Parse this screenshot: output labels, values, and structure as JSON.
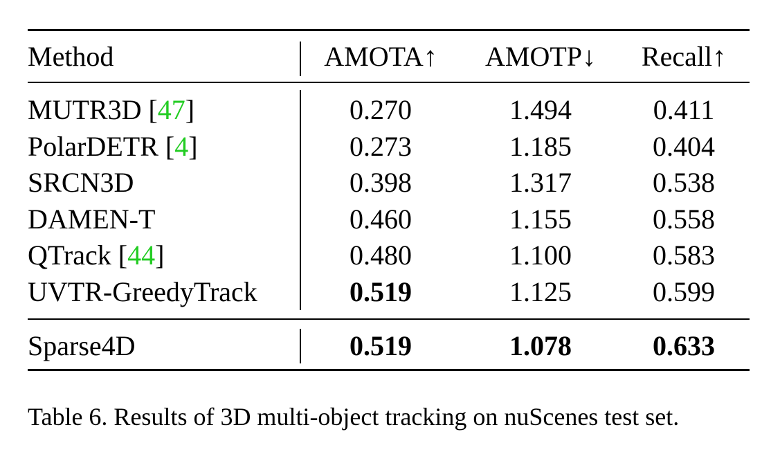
{
  "table": {
    "headers": {
      "method": "Method",
      "amota": "AMOTA↑",
      "amotp": "AMOTP↓",
      "recall": "Recall↑"
    },
    "rows": [
      {
        "method": "MUTR3D ",
        "ref": "47",
        "amota": "0.270",
        "amotp": "1.494",
        "recall": "0.411"
      },
      {
        "method": "PolarDETR ",
        "ref": "4",
        "amota": "0.273",
        "amotp": "1.185",
        "recall": "0.404"
      },
      {
        "method": "SRCN3D",
        "ref": "",
        "amota": "0.398",
        "amotp": "1.317",
        "recall": "0.538"
      },
      {
        "method": "DAMEN-T",
        "ref": "",
        "amota": "0.460",
        "amotp": "1.155",
        "recall": "0.558"
      },
      {
        "method": "QTrack ",
        "ref": "44",
        "amota": "0.480",
        "amotp": "1.100",
        "recall": "0.583"
      },
      {
        "method": "UVTR-GreedyTrack",
        "ref": "",
        "amota": "0.519",
        "amotp": "1.125",
        "recall": "0.599"
      }
    ],
    "final_row": {
      "method": "Sparse4D",
      "amota": "0.519",
      "amotp": "1.078",
      "recall": "0.633"
    }
  },
  "caption": "Table 6. Results of 3D multi-object tracking on nuScenes test set.",
  "colors": {
    "reference_link": "#22cc22"
  }
}
